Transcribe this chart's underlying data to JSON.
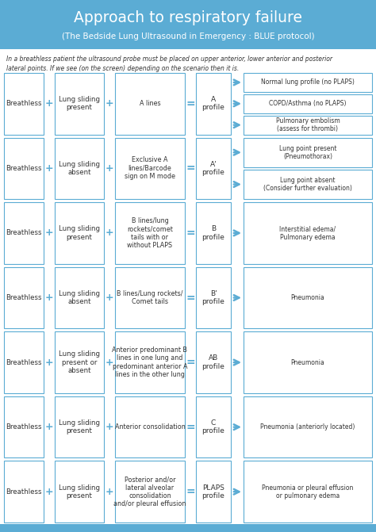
{
  "title": "Approach to respiratory failure",
  "subtitle": "(The Bedside Lung Ultrasound in Emergency : BLUE protocol)",
  "header_bg": "#5bacd4",
  "header_text_color": "#ffffff",
  "body_bg": "#ffffff",
  "box_border_color": "#5bacd4",
  "box_text_color": "#333333",
  "italic_text": "In a breathless patient the ultrasound probe must be placed on upper anterior, lower anterior and posterior\nlateral points. If we see (on the screen) depending on the scenario then it is.",
  "rows": [
    {
      "col1": "Breathless",
      "col2": "Lung sliding\npresent",
      "col3": "A lines",
      "profile": "A\nprofile",
      "outcomes": [
        "Normal lung profile (no PLAPS)",
        "COPD/Asthma (no PLAPS)",
        "Pulmonary embolism\n(assess for thrombi)"
      ]
    },
    {
      "col1": "Breathless",
      "col2": "Lung sliding\nabsent",
      "col3": "Exclusive A\nlines/Barcode\nsign on M mode",
      "profile": "A'\nprofile",
      "outcomes": [
        "Lung point present\n(Pneumothorax)",
        "Lung point absent\n(Consider further evaluation)"
      ]
    },
    {
      "col1": "Breathless",
      "col2": "Lung sliding\npresent",
      "col3": "B lines/lung\nrockets/comet\ntails with or\nwithout PLAPS",
      "profile": "B\nprofile",
      "outcomes": [
        "Interstitial edema/\nPulmonary edema"
      ]
    },
    {
      "col1": "Breathless",
      "col2": "Lung sliding\nabsent",
      "col3": "B lines/Lung rockets/\nComet tails",
      "profile": "B'\nprofile",
      "outcomes": [
        "Pneumonia"
      ]
    },
    {
      "col1": "Breathless",
      "col2": "Lung sliding\npresent or\nabsent",
      "col3": "Anterior predominant B\nlines in one lung and\npredominant anterior A\nlines in the other lung",
      "profile": "AB\nprofile",
      "outcomes": [
        "Pneumonia"
      ]
    },
    {
      "col1": "Breathless",
      "col2": "Lung sliding\npresent",
      "col3": "Anterior consolidation",
      "profile": "C\nprofile",
      "outcomes": [
        "Pneumonia (anteriorly located)"
      ]
    },
    {
      "col1": "Breathless",
      "col2": "Lung sliding\npresent",
      "col3": "Posterior and/or\nlateral alveolar\nconsolidation\nand/or pleural effusion",
      "profile": "PLAPS\nprofile",
      "outcomes": [
        "Pneumonia or pleural effusion\nor pulmonary edema"
      ]
    }
  ]
}
